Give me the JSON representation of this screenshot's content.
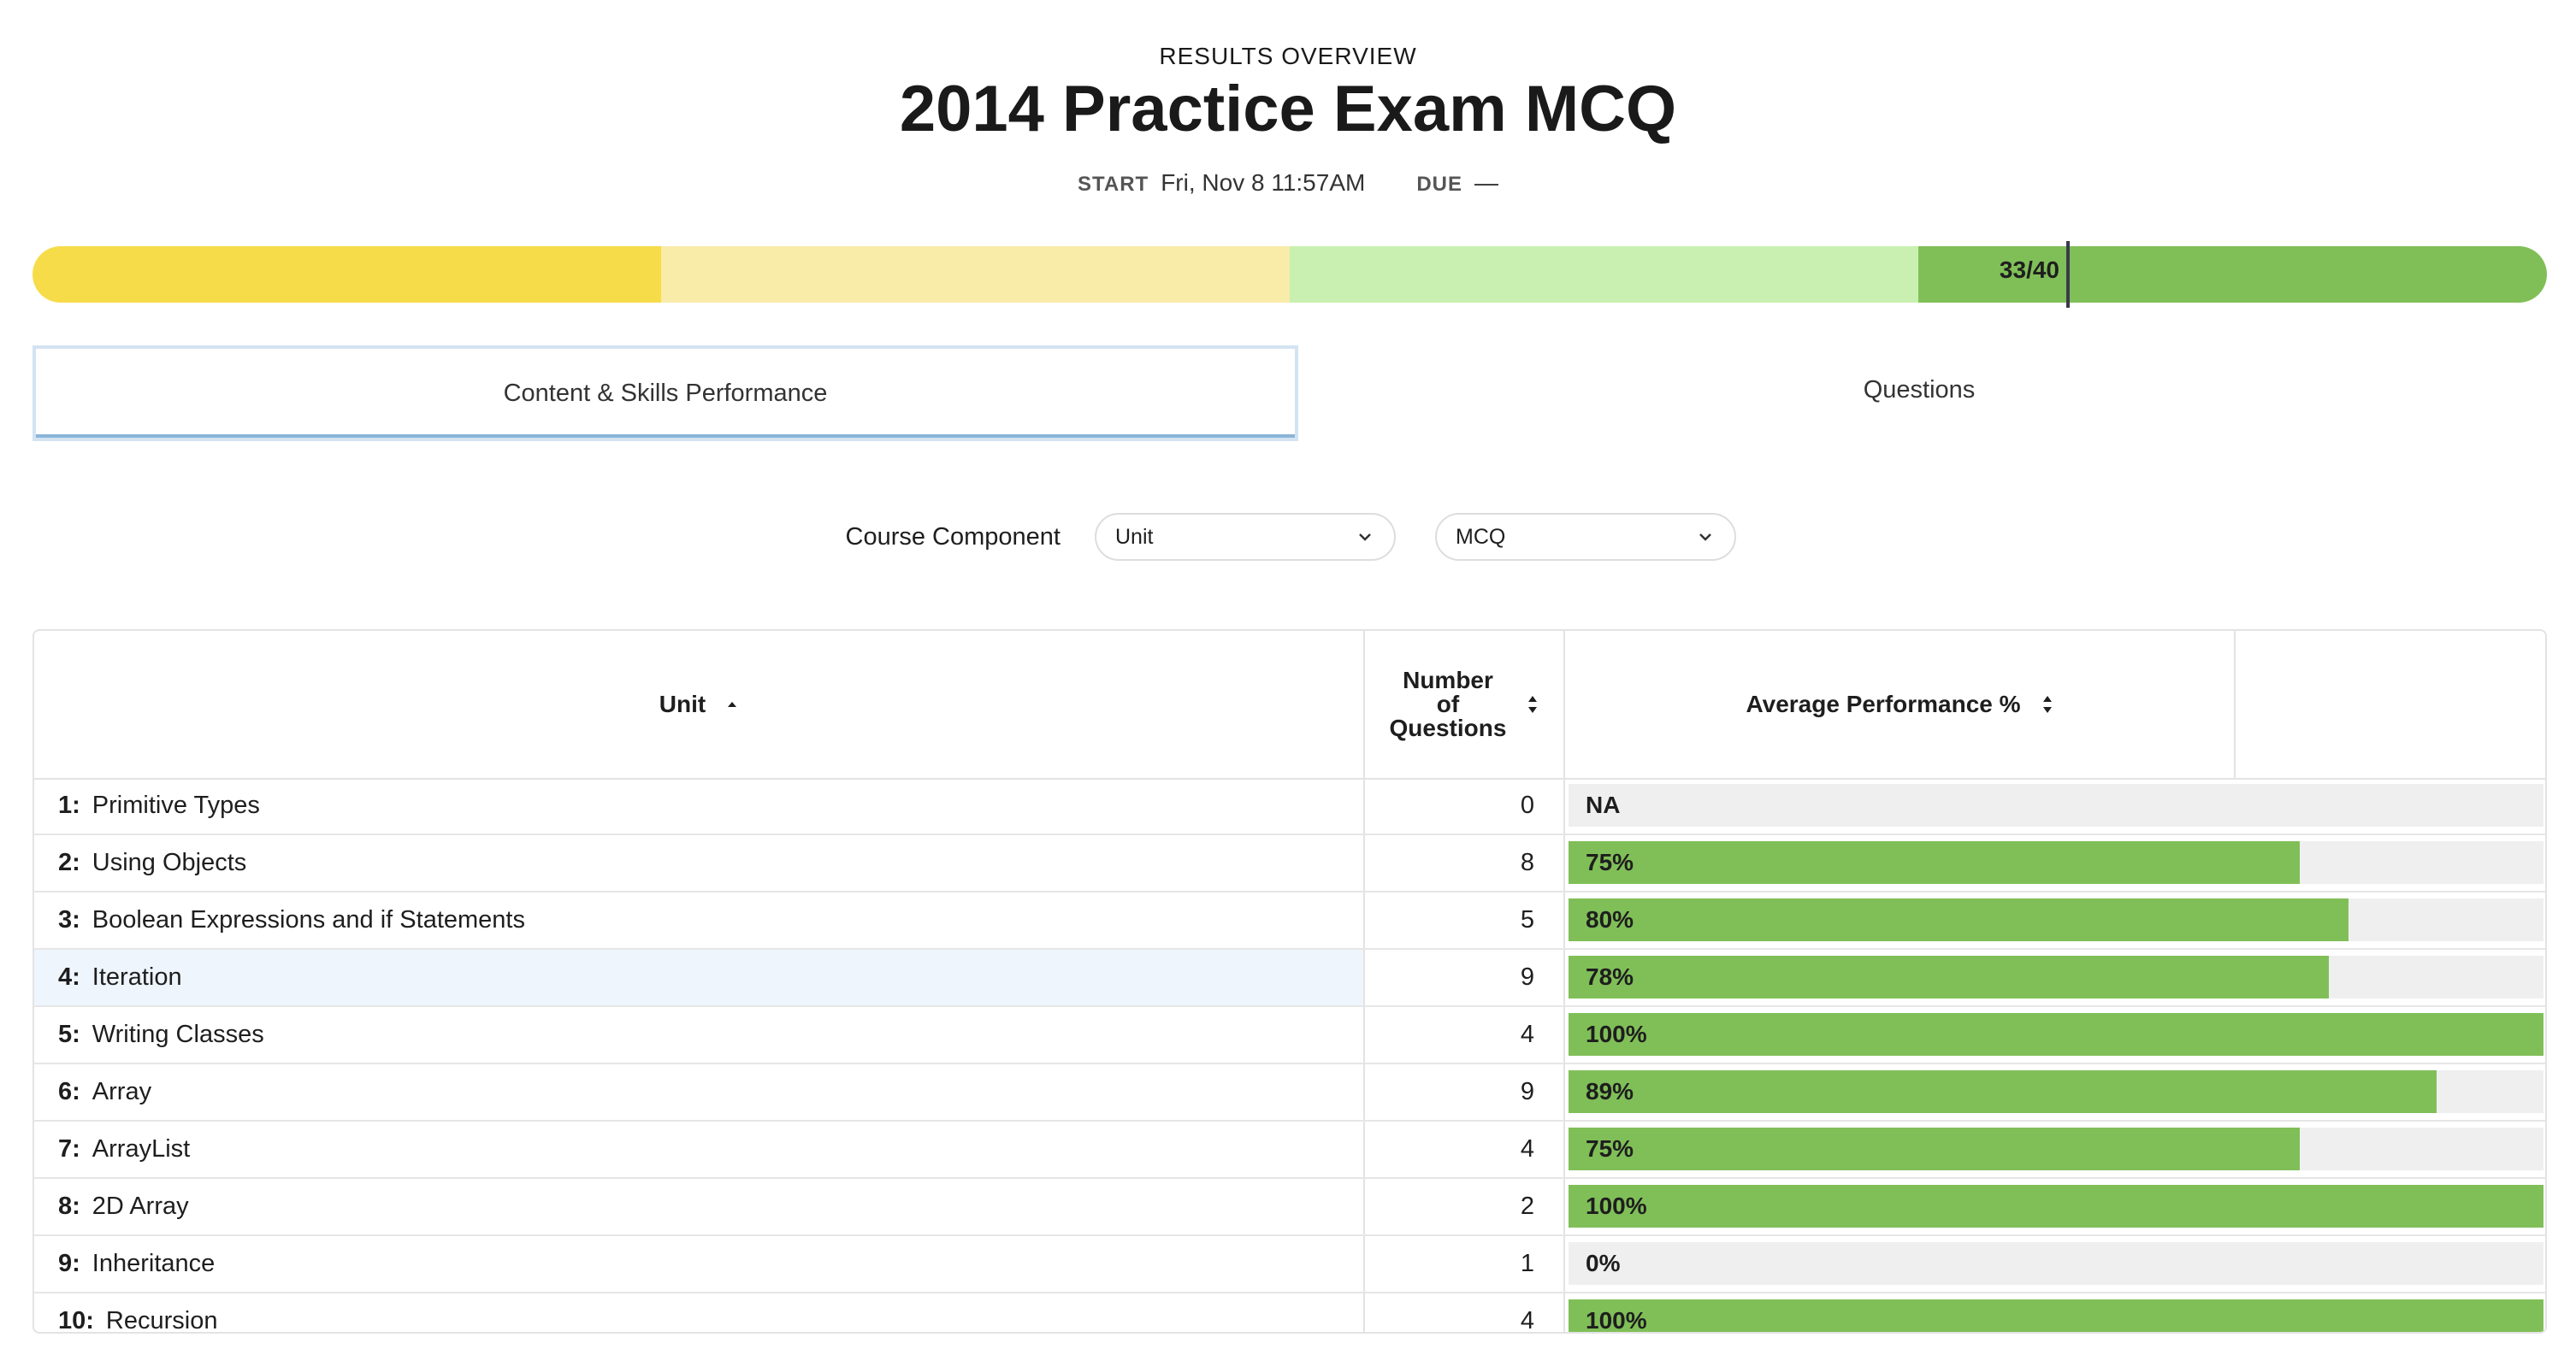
{
  "header": {
    "overview_label": "RESULTS OVERVIEW",
    "title": "2014 Practice Exam MCQ",
    "start_label": "START",
    "start_value": "Fri, Nov 8 11:57AM",
    "due_label": "DUE",
    "due_value": "—"
  },
  "score": {
    "value": 33,
    "max": 40,
    "label": "33/40",
    "band_colors": [
      "#f7dc4a",
      "#f9eba8",
      "#c9f0b0",
      "#80bf58"
    ]
  },
  "tabs": [
    {
      "label": "Content & Skills Performance",
      "active": true
    },
    {
      "label": "Questions",
      "active": false
    }
  ],
  "filters": {
    "label": "Course Component",
    "component_value": "Unit",
    "type_value": "MCQ"
  },
  "table": {
    "headers": {
      "unit": "Unit",
      "count_line1": "Number",
      "count_line2": "of",
      "count_line3": "Questions",
      "avg": "Average Performance %"
    },
    "bar_color": "#80bf58",
    "rows": [
      {
        "num": "1:",
        "name": "Primitive Types",
        "count": "0",
        "percent_label": "NA",
        "percent": 0
      },
      {
        "num": "2:",
        "name": "Using Objects",
        "count": "8",
        "percent_label": "75%",
        "percent": 75
      },
      {
        "num": "3:",
        "name": "Boolean Expressions and if Statements",
        "count": "5",
        "percent_label": "80%",
        "percent": 80
      },
      {
        "num": "4:",
        "name": "Iteration",
        "count": "9",
        "percent_label": "78%",
        "percent": 78,
        "highlighted": true
      },
      {
        "num": "5:",
        "name": "Writing Classes",
        "count": "4",
        "percent_label": "100%",
        "percent": 100
      },
      {
        "num": "6:",
        "name": "Array",
        "count": "9",
        "percent_label": "89%",
        "percent": 89
      },
      {
        "num": "7:",
        "name": "ArrayList",
        "count": "4",
        "percent_label": "75%",
        "percent": 75
      },
      {
        "num": "8:",
        "name": "2D Array",
        "count": "2",
        "percent_label": "100%",
        "percent": 100
      },
      {
        "num": "9:",
        "name": "Inheritance",
        "count": "1",
        "percent_label": "0%",
        "percent": 0
      },
      {
        "num": "10:",
        "name": "Recursion",
        "count": "4",
        "percent_label": "100%",
        "percent": 100
      }
    ]
  }
}
